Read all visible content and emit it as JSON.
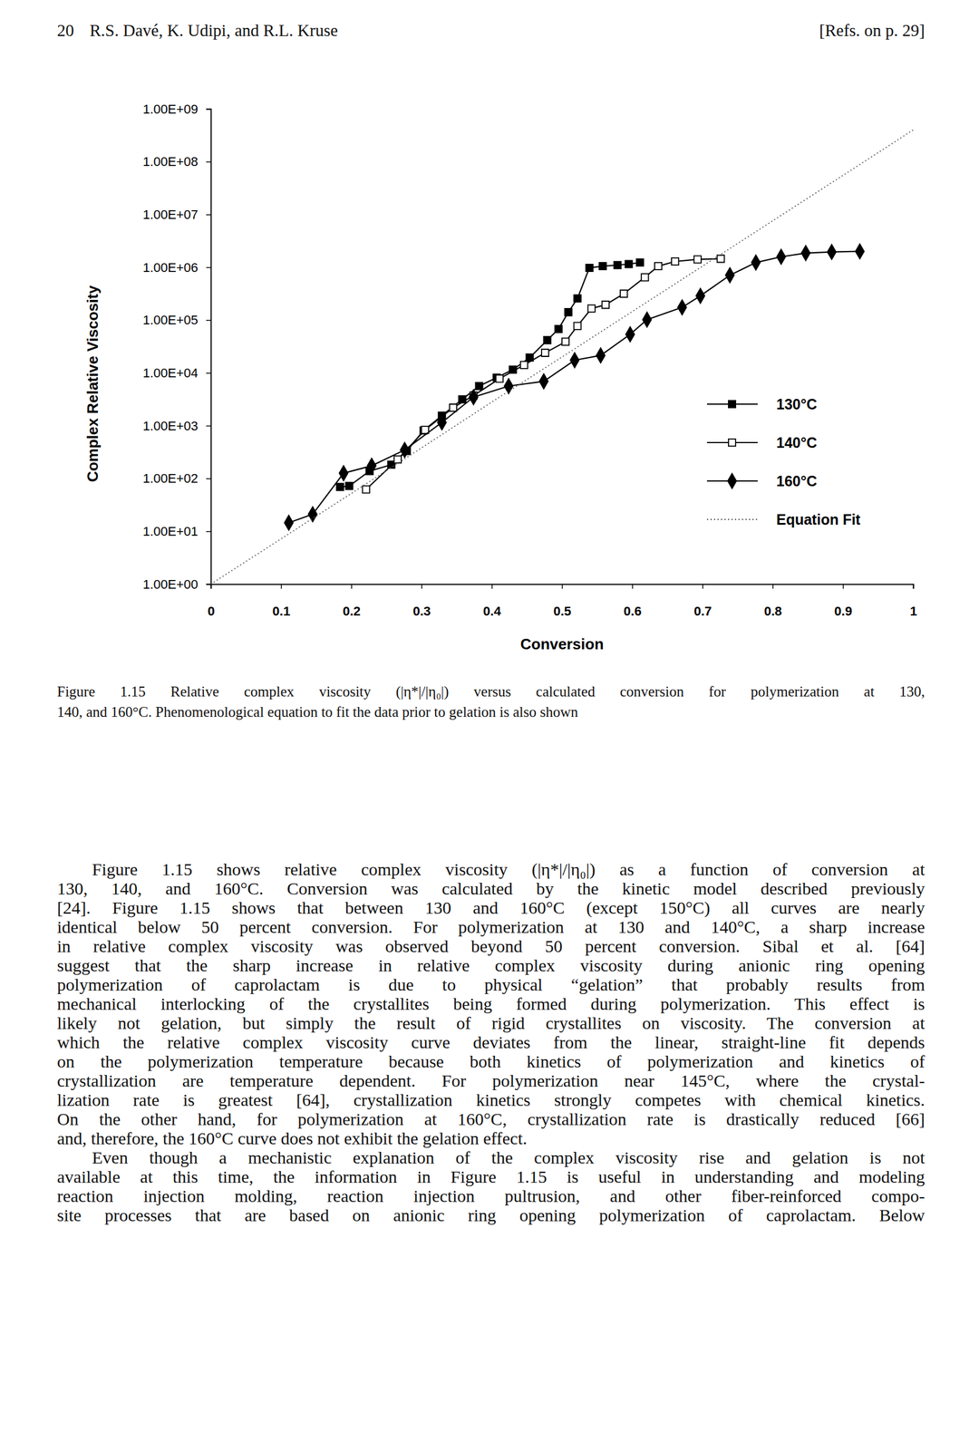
{
  "header": {
    "page": "20",
    "authors": "R.S. Davé, K. Udipi, and R.L. Kruse",
    "refs": "[Refs. on p. 29]"
  },
  "chart_data": {
    "type": "line",
    "x_label": "Conversion",
    "y_label": "Complex Relative Viscosity",
    "log": "y",
    "grid": false,
    "legend": "lower right",
    "xlim": [
      0,
      1
    ],
    "ylim": [
      1,
      1000000000
    ],
    "xticks": [
      0,
      0.1,
      0.2,
      0.3,
      0.4,
      0.5,
      0.6,
      0.7,
      0.8,
      0.9,
      1
    ],
    "yticks": [
      {
        "value": 1,
        "label": "1.00E+00"
      },
      {
        "value": 10,
        "label": "1.00E+01"
      },
      {
        "value": 100,
        "label": "1.00E+02"
      },
      {
        "value": 1000,
        "label": "1.00E+03"
      },
      {
        "value": 10000,
        "label": "1.00E+04"
      },
      {
        "value": 100000,
        "label": "1.00E+05"
      },
      {
        "value": 1000000,
        "label": "1.00E+06"
      },
      {
        "value": 10000000,
        "label": "1.00E+07"
      },
      {
        "value": 100000000,
        "label": "1.00E+08"
      },
      {
        "value": 1000000000,
        "label": "1.00E+09"
      }
    ],
    "series": [
      {
        "name": "130°C",
        "color": "#000000",
        "marker": "square",
        "line_style": "solid",
        "x": [
          0.184,
          0.197,
          0.226,
          0.257,
          0.279,
          0.303,
          0.329,
          0.358,
          0.382,
          0.407,
          0.43,
          0.454,
          0.479,
          0.495,
          0.509,
          0.522,
          0.539,
          0.558,
          0.579,
          0.595,
          0.611
        ],
        "values": [
          69,
          72,
          138,
          182,
          331,
          813,
          1550,
          3160,
          5620,
          8130,
          11500,
          19500,
          41700,
          67600,
          141000,
          257000,
          977000,
          1050000,
          1100000,
          1150000,
          1230000
        ]
      },
      {
        "name": "140°C",
        "color": "#000000",
        "marker": "square-open",
        "line_style": "solid",
        "x": [
          0.221,
          0.266,
          0.305,
          0.345,
          0.374,
          0.411,
          0.446,
          0.476,
          0.505,
          0.522,
          0.542,
          0.562,
          0.588,
          0.618,
          0.637,
          0.661,
          0.693,
          0.726
        ],
        "values": [
          62,
          229,
          832,
          2190,
          3720,
          7760,
          14100,
          24000,
          38900,
          77600,
          166000,
          195000,
          316000,
          646000,
          1050000,
          1290000,
          1410000,
          1450000
        ]
      },
      {
        "name": "160°C",
        "color": "#000000",
        "marker": "diamond",
        "line_style": "solid",
        "x": [
          0.111,
          0.145,
          0.189,
          0.229,
          0.276,
          0.329,
          0.374,
          0.424,
          0.474,
          0.518,
          0.555,
          0.597,
          0.621,
          0.671,
          0.697,
          0.739,
          0.776,
          0.812,
          0.847,
          0.884,
          0.924
        ],
        "values": [
          14.5,
          21,
          126,
          174,
          347,
          1150,
          3470,
          5620,
          6920,
          17400,
          21400,
          53700,
          102000,
          174000,
          288000,
          708000,
          1230000,
          1580000,
          1860000,
          1950000,
          2000000
        ]
      },
      {
        "name": "Equation Fit",
        "color": "#555555",
        "marker": "none",
        "line_style": "dotted",
        "x": [
          0,
          0.1,
          0.2,
          0.3,
          0.4,
          0.5,
          0.6,
          0.7,
          0.8,
          0.9,
          1
        ],
        "values": [
          1,
          7.2,
          52,
          380,
          2800,
          20000,
          145000,
          1050000,
          7600000,
          55000000,
          400000000
        ]
      }
    ]
  },
  "caption": [
    "Figure 1.15 Relative complex viscosity (|η*|/|η₀|) versus calculated conversion for polymerization at 130,",
    "140, and 160°C. Phenomenological equation to fit the data prior to gelation is also shown"
  ],
  "paragraphs": [
    [
      "Figure 1.15 shows relative complex viscosity (|η*|/|η₀|) as a function of conversion at",
      "130, 140, and 160°C. Conversion was calculated by the kinetic model described previously",
      "[24]. Figure 1.15 shows that between 130 and 160°C (except 150°C) all curves are nearly",
      "identical below 50 percent conversion. For polymerization at 130 and 140°C, a sharp increase",
      "in relative complex viscosity was observed beyond 50 percent conversion. Sibal et al. [64]",
      "suggest that the sharp increase in relative complex viscosity during anionic ring opening",
      "polymerization of caprolactam is due to physical “gelation” that probably results from",
      "mechanical interlocking of the crystallites being formed during polymerization. This effect is",
      "likely not gelation, but simply the result of rigid crystallites on viscosity. The conversion at",
      "which the relative complex viscosity curve deviates from the linear, straight-line fit depends",
      "on the polymerization temperature because both kinetics of polymerization and kinetics of",
      "crystallization are temperature dependent. For polymerization near 145°C, where the crystal-",
      "lization rate is greatest [64], crystallization kinetics strongly competes with chemical kinetics.",
      "On the other hand, for polymerization at 160°C, crystallization rate is drastically reduced [66]",
      "and, therefore, the 160°C curve does not exhibit the gelation effect."
    ],
    [
      "Even though a mechanistic explanation of the complex viscosity rise and gelation is not",
      "available at this time, the information in Figure 1.15 is useful in understanding and modeling",
      "reaction injection molding, reaction injection pultrusion, and other fiber-reinforced compo-",
      "site processes that are based on anionic ring opening polymerization of caprolactam. Below"
    ]
  ]
}
